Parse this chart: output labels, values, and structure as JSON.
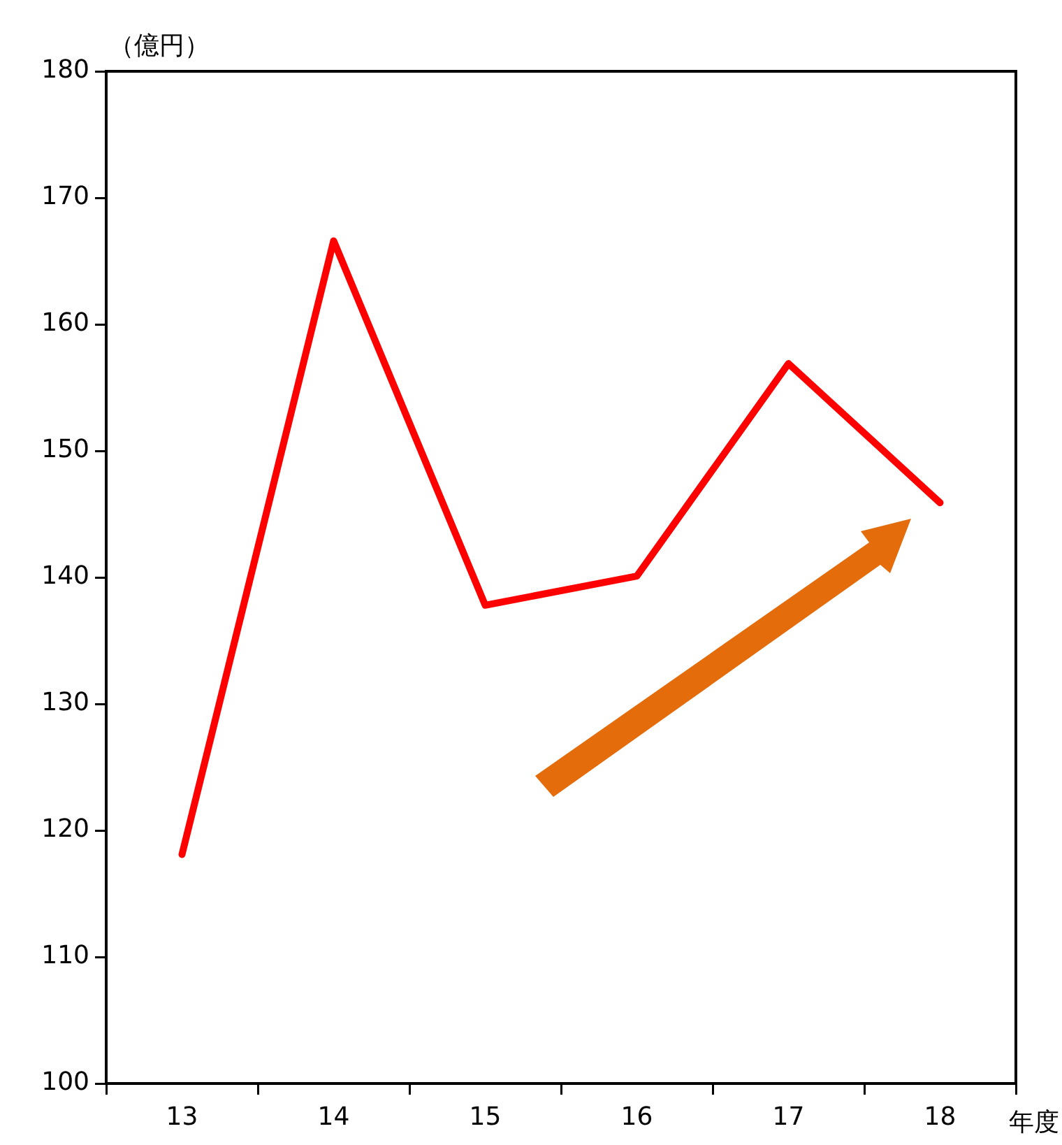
{
  "chart_data": {
    "type": "line",
    "ylabel": "（億円）",
    "xlabel": "年度",
    "categories": [
      "13",
      "14",
      "15",
      "16",
      "17",
      "18"
    ],
    "series": [
      {
        "color": "#ff0000",
        "values": [
          118.1,
          166.6,
          137.8,
          140.1,
          156.9,
          145.9
        ]
      }
    ],
    "ylim": [
      100,
      180
    ],
    "yticks": [
      100,
      110,
      120,
      130,
      140,
      150,
      160,
      170,
      180
    ],
    "grid": false,
    "legend": false,
    "marker": "none",
    "line_style": "solid"
  }
}
